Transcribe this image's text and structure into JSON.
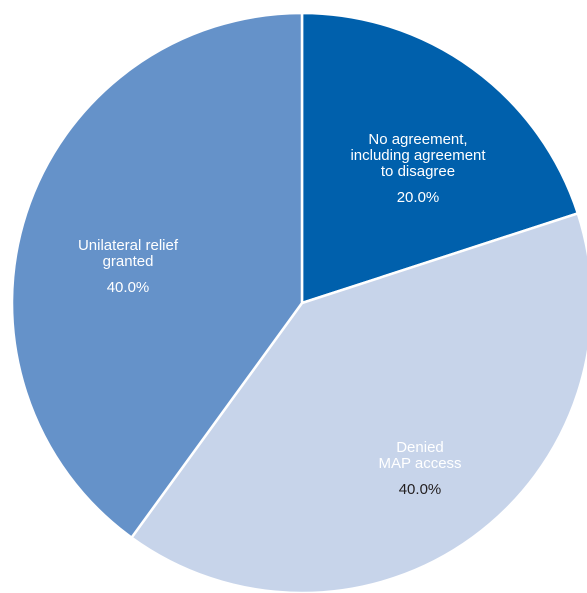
{
  "chart_data": {
    "type": "pie",
    "title": "",
    "slices": [
      {
        "label_lines": [
          "No agreement,",
          "including agreement",
          "to disagree"
        ],
        "value": 20.0,
        "value_label": "20.0%",
        "color": "#0060ac",
        "text_color": "#ffffff"
      },
      {
        "label_lines": [
          "Denied",
          "MAP access"
        ],
        "value": 40.0,
        "value_label": "40.0%",
        "color": "#c7d4ea",
        "text_color": "#231f20"
      },
      {
        "label_lines": [
          "Unilateral relief",
          "granted"
        ],
        "value": 40.0,
        "value_label": "40.0%",
        "color": "#6592c9",
        "text_color": "#ffffff"
      }
    ],
    "start_angle_deg": 0,
    "direction": "clockwise",
    "legend": "none"
  }
}
